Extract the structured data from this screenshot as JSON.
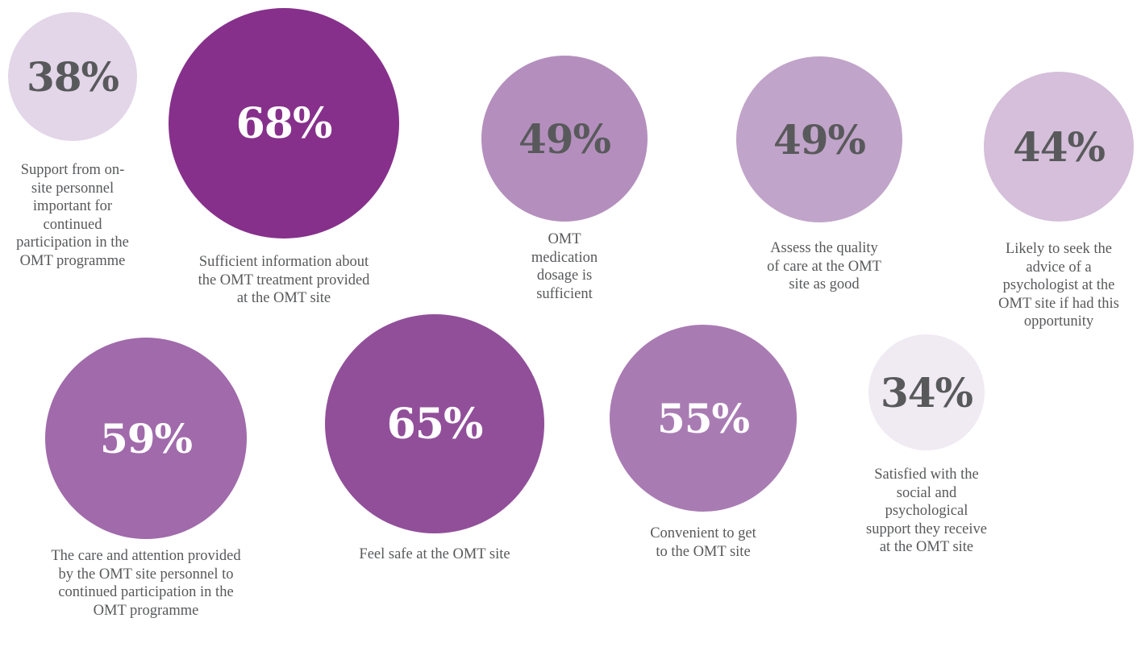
{
  "chart_data": {
    "type": "bubble",
    "items": [
      {
        "value": 38,
        "label": "38%",
        "caption": "Support from on-site personnel important for continued participation in the OMT programme",
        "color": "#e2d6e8"
      },
      {
        "value": 68,
        "label": "68%",
        "caption": "Sufficient information about the OMT treatment provided at the OMT site",
        "color": "#86308b"
      },
      {
        "value": 49,
        "label": "49%",
        "caption": "OMT medication dosage is sufficient",
        "color": "#b48fbd"
      },
      {
        "value": 49,
        "label": "49%",
        "caption": "Assess the quality of care at the OMT site as good",
        "color": "#c1a4c9"
      },
      {
        "value": 44,
        "label": "44%",
        "caption": "Likely to seek the advice of a psychologist at the OMT site if had this opportunity",
        "color": "#d5bfda"
      },
      {
        "value": 59,
        "label": "59%",
        "caption": "The care and attention provided by the OMT site personnel to continued participation in the OMT programme",
        "color": "#a06aab"
      },
      {
        "value": 65,
        "label": "65%",
        "caption": "Feel safe at the OMT site",
        "color": "#914f9a"
      },
      {
        "value": 55,
        "label": "55%",
        "caption": "Convenient to get to the OMT site",
        "color": "#a97bb3"
      },
      {
        "value": 34,
        "label": "34%",
        "caption": "Satisfied with the social and psychological support they receive at the OMT site",
        "color": "#f0eaf2"
      }
    ]
  }
}
